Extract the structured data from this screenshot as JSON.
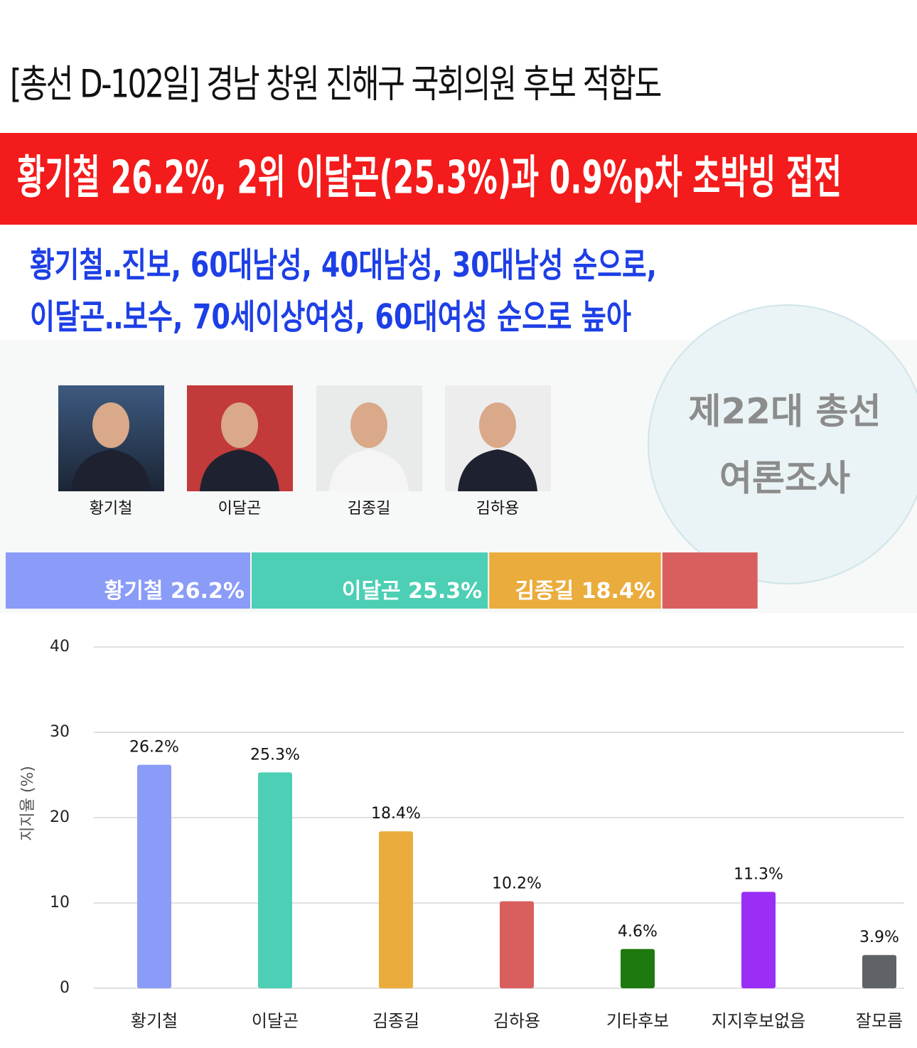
{
  "header": {
    "title": "[총선 D-102일] 경남 창원 진해구 국회의원 후보 적합도",
    "headline": "황기철 26.2%, 2위 이달곤(25.3%)과 0.9%p차 초박빙 접전",
    "summary": [
      "황기철‥진보, 60대남성, 40대남성, 30대남성 순으로,",
      "이달곤‥보수, 70세이상여성, 60대여성 순으로 높아"
    ]
  },
  "candidates": [
    "황기철",
    "이달곤",
    "김종길",
    "김하용"
  ],
  "badge": [
    "제22대 총선",
    "여론조사"
  ],
  "chart_data": [
    {
      "type": "stacked-bar",
      "series": [
        {
          "name": "황기철",
          "color": "#8a9cf7",
          "values": [
            26.2
          ],
          "value_labels": [
            "황기철 26.2%"
          ]
        },
        {
          "name": "이달곤",
          "color": "#4ccfb4",
          "values": [
            25.3
          ],
          "value_labels": [
            "이달곤 25.3%"
          ]
        },
        {
          "name": "김종길",
          "color": "#eaac3c",
          "values": [
            18.4
          ],
          "value_labels": [
            "김종길 18.4%"
          ]
        },
        {
          "name": "김하용",
          "color": "#d95f5f",
          "values": [
            10.2
          ],
          "value_labels": [
            null
          ]
        }
      ]
    },
    {
      "type": "bar",
      "y_label": "지지율 (%)",
      "categories": [
        "황기철",
        "이달곤",
        "김종길",
        "김하용",
        "기타후보",
        "지지후보없음",
        "잘모름"
      ],
      "values": [
        26.2,
        25.3,
        18.4,
        10.2,
        4.6,
        11.3,
        3.9
      ],
      "value_labels": [
        "26.2%",
        "25.3%",
        "18.4%",
        "10.2%",
        "4.6%",
        "11.3%",
        "3.9%"
      ],
      "colors": [
        "#8a9cf7",
        "#4ccfb4",
        "#eaac3c",
        "#d95f5f",
        "#1e7a0e",
        "#9b2ef5",
        "#5f6368"
      ],
      "ylim": [
        0,
        40
      ],
      "yticks": [
        0,
        10,
        20,
        30,
        40
      ],
      "grid": true
    }
  ]
}
